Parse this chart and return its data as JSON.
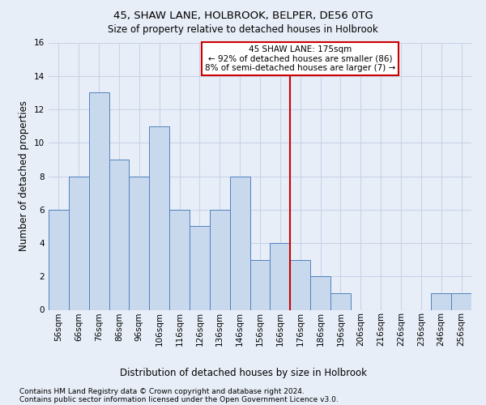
{
  "title": "45, SHAW LANE, HOLBROOK, BELPER, DE56 0TG",
  "subtitle": "Size of property relative to detached houses in Holbrook",
  "xlabel_bottom": "Distribution of detached houses by size in Holbrook",
  "ylabel": "Number of detached properties",
  "footnote1": "Contains HM Land Registry data © Crown copyright and database right 2024.",
  "footnote2": "Contains public sector information licensed under the Open Government Licence v3.0.",
  "bar_labels": [
    "56sqm",
    "66sqm",
    "76sqm",
    "86sqm",
    "96sqm",
    "106sqm",
    "116sqm",
    "126sqm",
    "136sqm",
    "146sqm",
    "156sqm",
    "166sqm",
    "176sqm",
    "186sqm",
    "196sqm",
    "206sqm",
    "216sqm",
    "226sqm",
    "236sqm",
    "246sqm",
    "256sqm"
  ],
  "bar_values": [
    6,
    8,
    13,
    9,
    8,
    11,
    6,
    5,
    6,
    8,
    3,
    4,
    3,
    2,
    1,
    0,
    0,
    0,
    0,
    1,
    1
  ],
  "bar_color": "#c9d9ed",
  "bar_edgecolor": "#4f81bd",
  "grid_color": "#c8d4e8",
  "background_color": "#e8eef8",
  "annotation_text1": "45 SHAW LANE: 175sqm",
  "annotation_text2": "← 92% of detached houses are smaller (86)",
  "annotation_text3": "8% of semi-detached houses are larger (7) →",
  "annotation_box_color": "#ffffff",
  "annotation_box_edgecolor": "#cc0000",
  "vline_color": "#cc0000",
  "ylim": [
    0,
    16
  ],
  "yticks": [
    0,
    2,
    4,
    6,
    8,
    10,
    12,
    14,
    16
  ],
  "title_fontsize": 9.5,
  "subtitle_fontsize": 8.5,
  "ylabel_fontsize": 8.5,
  "tick_fontsize": 7.5,
  "annot_fontsize": 7.5,
  "footnote_fontsize": 6.5,
  "xlabel_bottom_fontsize": 8.5
}
